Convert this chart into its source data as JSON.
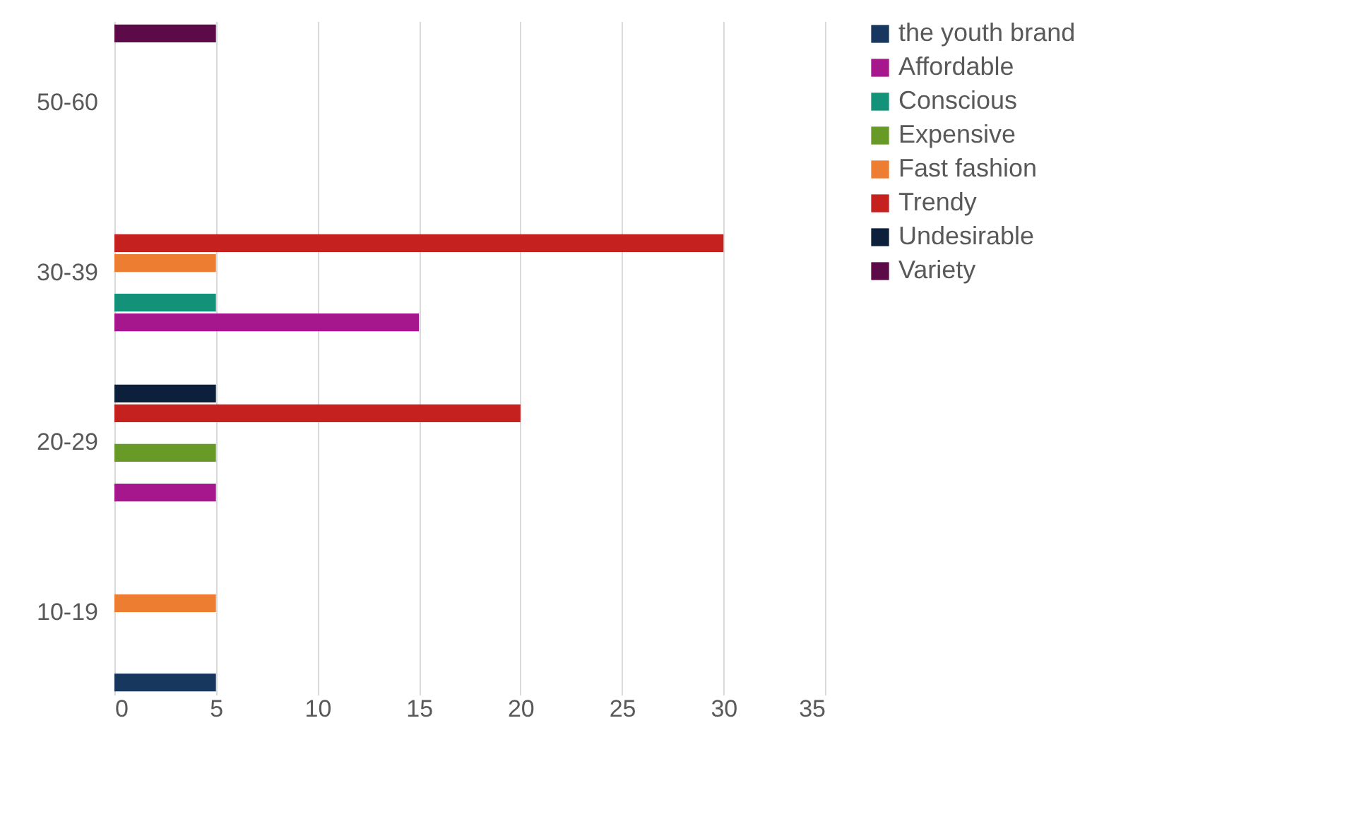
{
  "chart_data": {
    "type": "bar",
    "orientation": "horizontal",
    "categories": [
      "50-60",
      "30-39",
      "20-29",
      "10-19"
    ],
    "series": [
      {
        "name": "the youth brand",
        "color": "#17375e",
        "values": [
          null,
          null,
          null,
          5
        ]
      },
      {
        "name": "Affordable",
        "color": "#a6168c",
        "values": [
          null,
          15,
          5,
          null
        ]
      },
      {
        "name": "Conscious",
        "color": "#139279",
        "values": [
          null,
          5,
          null,
          null
        ]
      },
      {
        "name": "Expensive",
        "color": "#679a27",
        "values": [
          null,
          null,
          5,
          null
        ]
      },
      {
        "name": "Fast fashion",
        "color": "#ed7d31",
        "values": [
          null,
          5,
          null,
          5
        ]
      },
      {
        "name": "Trendy",
        "color": "#c4211f",
        "values": [
          null,
          30,
          20,
          null
        ]
      },
      {
        "name": "Undesirable",
        "color": "#0c1f3b",
        "values": [
          null,
          null,
          5,
          null
        ]
      },
      {
        "name": "Variety",
        "color": "#5d0a48",
        "values": [
          5,
          null,
          null,
          null
        ]
      }
    ],
    "xlim": [
      0,
      35
    ],
    "xticks": [
      0,
      5,
      10,
      15,
      20,
      25,
      30,
      35
    ],
    "grid": "x",
    "legend": "right"
  }
}
